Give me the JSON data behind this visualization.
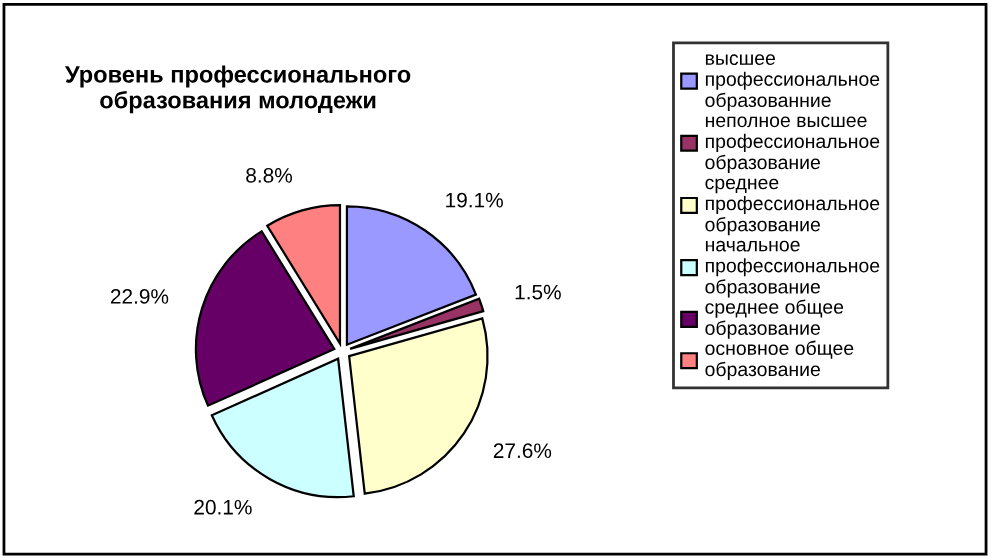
{
  "chart_data": {
    "type": "pie",
    "title": "Уровень профессионального\nобразования молодежи",
    "categories": [
      "высшее\nпрофессиональное\nобразованние",
      "неполное высшее\nпрофессиональное\nобразование",
      "среднее\nпрофессиональное\nобразование",
      "начальное\nпрофессиональное\nобразование",
      "среднее общее\nобразование",
      "основное общее\nобразование"
    ],
    "values": [
      19.1,
      1.5,
      27.6,
      20.1,
      22.9,
      8.8
    ],
    "value_labels": [
      "19.1%",
      "1.5%",
      "27.6%",
      "20.1%",
      "22.9%",
      "8.8%"
    ],
    "colors": [
      "#9999ff",
      "#993366",
      "#ffffcc",
      "#ccffff",
      "#660066",
      "#ff8080"
    ],
    "legend": "right"
  }
}
